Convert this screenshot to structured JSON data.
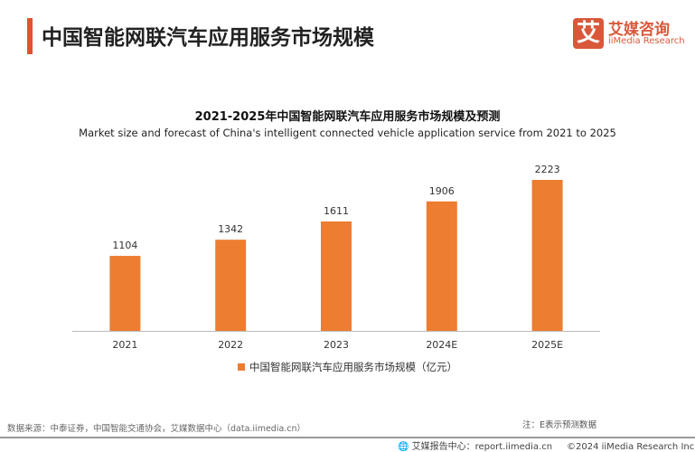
{
  "header": {
    "title": "中国智能网联汽车应用服务市场规模"
  },
  "logo": {
    "glyph": "艾",
    "cn": "艾媒咨询",
    "en": "iiMedia Research"
  },
  "chart_data": {
    "type": "bar",
    "title": "2021-2025年中国智能网联汽车应用服务市场规模及预测",
    "subtitle": "Market size and forecast of China's intelligent connected vehicle application service from 2021 to 2025",
    "categories": [
      "2021",
      "2022",
      "2023",
      "2024E",
      "2025E"
    ],
    "series": [
      {
        "name": "中国智能网联汽车应用服务市场规模（亿元）",
        "values": [
          1104,
          1342,
          1611,
          1906,
          2223
        ],
        "color": "#ed7d31"
      }
    ],
    "ylim": [
      0,
      2223
    ],
    "legend": "bottom",
    "grid": false
  },
  "footer": {
    "source": "数据来源：中泰证券，中国智能交通协会，艾媒数据中心（data.iimedia.cn）",
    "note": "注：E表示预测数据",
    "report": "艾媒报告中心：report.iimedia.cn",
    "copyright": "©2024  iiMedia Research  Inc"
  }
}
